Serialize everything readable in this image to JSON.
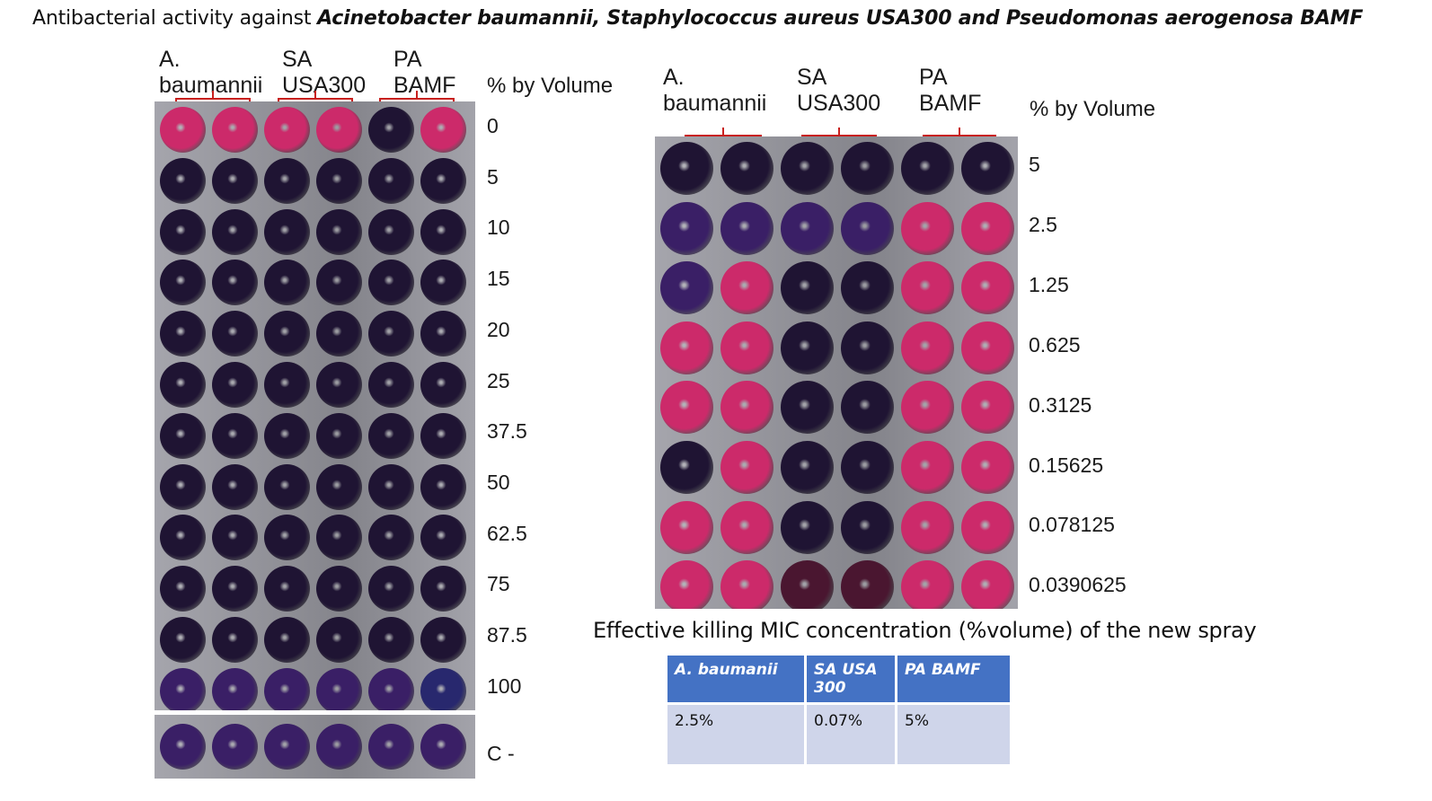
{
  "title": {
    "prefix": "Antibacterial activity against ",
    "organisms": "Acinetobacter baumannii, Staphylococcus aureus USA300 and  Pseudomonas aerogenosa BAMF"
  },
  "left_panel": {
    "col_labels": [
      {
        "line1": "A.",
        "line2": "baumannii"
      },
      {
        "line1": "SA",
        "line2": "USA300"
      },
      {
        "line1": "PA",
        "line2": "BAMF"
      }
    ],
    "volume_header": "% by Volume",
    "row_labels": [
      "0",
      "5",
      "10",
      "15",
      "20",
      "25",
      "37.5",
      "50",
      "62.5",
      "75",
      "87.5",
      "100"
    ],
    "control_label": "C -",
    "well_colors": [
      [
        "pink",
        "pink",
        "pink",
        "pink",
        "dark",
        "pink"
      ],
      [
        "dark",
        "dark",
        "dark",
        "dark",
        "dark",
        "dark"
      ],
      [
        "dark",
        "dark",
        "dark",
        "dark",
        "dark",
        "dark"
      ],
      [
        "dark",
        "dark",
        "dark",
        "dark",
        "dark",
        "dark"
      ],
      [
        "dark",
        "dark",
        "dark",
        "dark",
        "dark",
        "dark"
      ],
      [
        "dark",
        "dark",
        "dark",
        "dark",
        "dark",
        "dark"
      ],
      [
        "dark",
        "dark",
        "dark",
        "dark",
        "dark",
        "dark"
      ],
      [
        "dark",
        "dark",
        "dark",
        "dark",
        "dark",
        "dark"
      ],
      [
        "dark",
        "dark",
        "dark",
        "dark",
        "dark",
        "dark"
      ],
      [
        "dark",
        "dark",
        "dark",
        "dark",
        "dark",
        "dark"
      ],
      [
        "dark",
        "dark",
        "dark",
        "dark",
        "dark",
        "dark"
      ],
      [
        "violet",
        "violet",
        "violet",
        "violet",
        "violet",
        "blue"
      ]
    ],
    "control_colors": [
      "violet",
      "violet",
      "violet",
      "violet",
      "violet",
      "violet"
    ]
  },
  "right_panel": {
    "col_labels": [
      {
        "line1": "A.",
        "line2": "baumannii"
      },
      {
        "line1": "SA",
        "line2": "USA300"
      },
      {
        "line1": "PA",
        "line2": "BAMF"
      }
    ],
    "volume_header": "% by Volume",
    "row_labels": [
      "5",
      "2.5",
      "1.25",
      "0.625",
      "0.3125",
      "0.15625",
      "0.078125",
      "0.0390625"
    ],
    "well_colors": [
      [
        "dark",
        "dark",
        "dark",
        "dark",
        "dark",
        "dark"
      ],
      [
        "violet",
        "violet",
        "violet",
        "violet",
        "pink",
        "pink"
      ],
      [
        "violet",
        "pink",
        "dark",
        "dark",
        "pink",
        "pink"
      ],
      [
        "pink",
        "pink",
        "dark",
        "dark",
        "pink",
        "pink"
      ],
      [
        "pink",
        "pink",
        "dark",
        "dark",
        "pink",
        "pink"
      ],
      [
        "dark",
        "pink",
        "dark",
        "dark",
        "pink",
        "pink"
      ],
      [
        "pink",
        "pink",
        "dark",
        "dark",
        "pink",
        "pink"
      ],
      [
        "pink",
        "pink",
        "maroon",
        "maroon",
        "pink",
        "pink"
      ]
    ]
  },
  "colors": {
    "pink": "#cc2a6a",
    "dark": "#1f1433",
    "violet": "#3a1f66",
    "blue": "#28286e",
    "maroon": "#4a1630",
    "bracket": "#c8201e",
    "table_header": "#4472c4",
    "table_cell": "#cfd5ea"
  },
  "mic_section": {
    "subtitle": "Effective killing MIC concentration (%volume) of the new spray",
    "headers": [
      "A. baumanii",
      "SA USA 300",
      "PA BAMF"
    ],
    "values": [
      "2.5%",
      "0.07%",
      "5%"
    ]
  }
}
